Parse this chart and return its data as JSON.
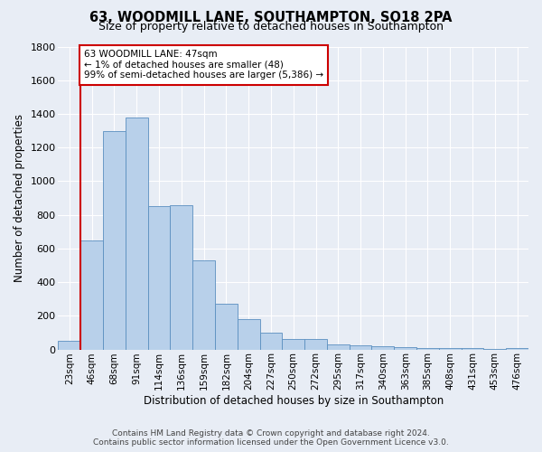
{
  "title": "63, WOODMILL LANE, SOUTHAMPTON, SO18 2PA",
  "subtitle": "Size of property relative to detached houses in Southampton",
  "xlabel": "Distribution of detached houses by size in Southampton",
  "ylabel": "Number of detached properties",
  "categories": [
    "23sqm",
    "46sqm",
    "68sqm",
    "91sqm",
    "114sqm",
    "136sqm",
    "159sqm",
    "182sqm",
    "204sqm",
    "227sqm",
    "250sqm",
    "272sqm",
    "295sqm",
    "317sqm",
    "340sqm",
    "363sqm",
    "385sqm",
    "408sqm",
    "431sqm",
    "453sqm",
    "476sqm"
  ],
  "values": [
    50,
    650,
    1300,
    1380,
    850,
    855,
    530,
    270,
    180,
    100,
    60,
    60,
    28,
    25,
    18,
    15,
    10,
    10,
    8,
    5,
    8
  ],
  "bar_color": "#b8d0ea",
  "bar_edge_color": "#5a8fc0",
  "annotation_text": "63 WOODMILL LANE: 47sqm\n← 1% of detached houses are smaller (48)\n99% of semi-detached houses are larger (5,386) →",
  "annotation_box_facecolor": "#ffffff",
  "annotation_box_edgecolor": "#cc0000",
  "property_line_color": "#cc0000",
  "property_line_x": 0.5,
  "ylim": [
    0,
    1800
  ],
  "yticks": [
    0,
    200,
    400,
    600,
    800,
    1000,
    1200,
    1400,
    1600,
    1800
  ],
  "bg_color": "#e8edf5",
  "grid_color": "#ffffff",
  "footer1": "Contains HM Land Registry data © Crown copyright and database right 2024.",
  "footer2": "Contains public sector information licensed under the Open Government Licence v3.0."
}
